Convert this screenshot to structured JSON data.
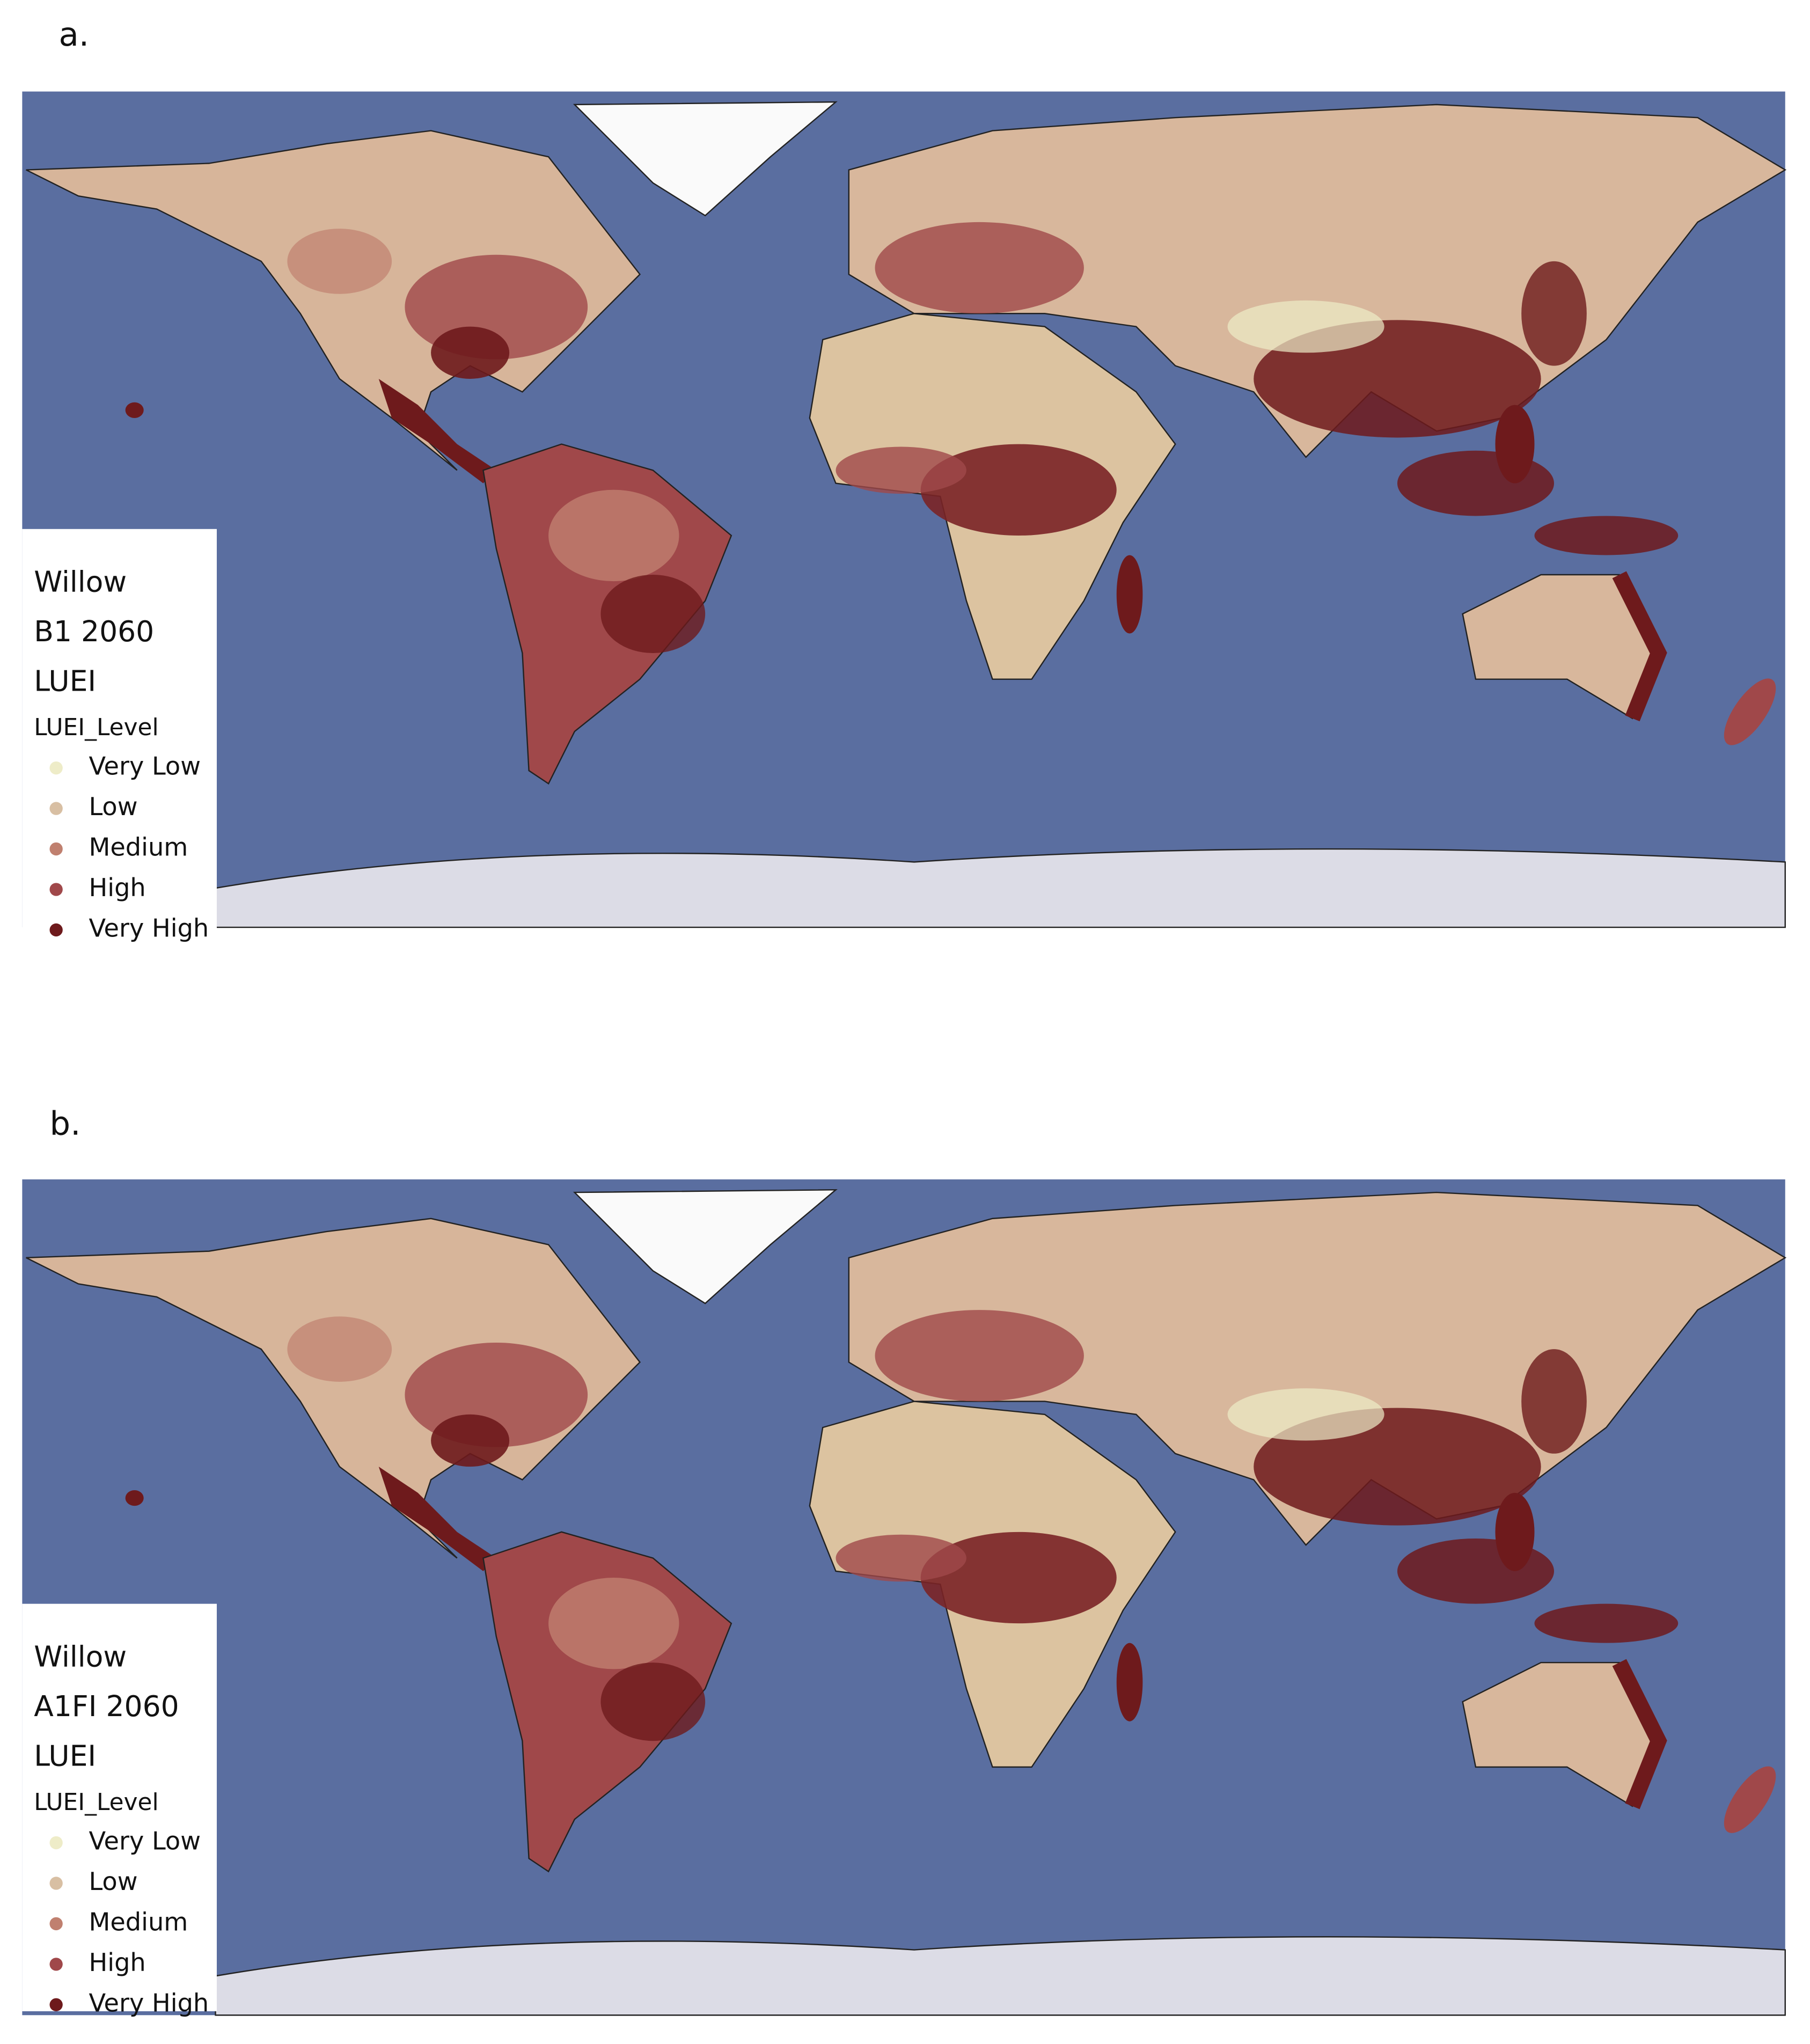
{
  "panels": [
    {
      "label": "a.",
      "legend": {
        "title": [
          "Willow",
          "B1 2060",
          "LUEI"
        ],
        "subtitle": "LUEI_Level",
        "items": [
          {
            "label": "Very Low",
            "color": "#eeecc8"
          },
          {
            "label": "Low",
            "color": "#d8bfa3"
          },
          {
            "label": "Medium",
            "color": "#c0806f"
          },
          {
            "label": "High",
            "color": "#a0484a"
          },
          {
            "label": "Very High",
            "color": "#6e1a1c"
          }
        ]
      }
    },
    {
      "label": "b.",
      "legend": {
        "title": [
          "Willow",
          "A1FI 2060",
          "LUEI"
        ],
        "subtitle": "LUEI_Level",
        "items": [
          {
            "label": "Very Low",
            "color": "#eeecc8"
          },
          {
            "label": "Low",
            "color": "#d8bfa3"
          },
          {
            "label": "Medium",
            "color": "#c0806f"
          },
          {
            "label": "High",
            "color": "#a0484a"
          },
          {
            "label": "Very High",
            "color": "#6e1a1c"
          }
        ]
      }
    }
  ]
}
